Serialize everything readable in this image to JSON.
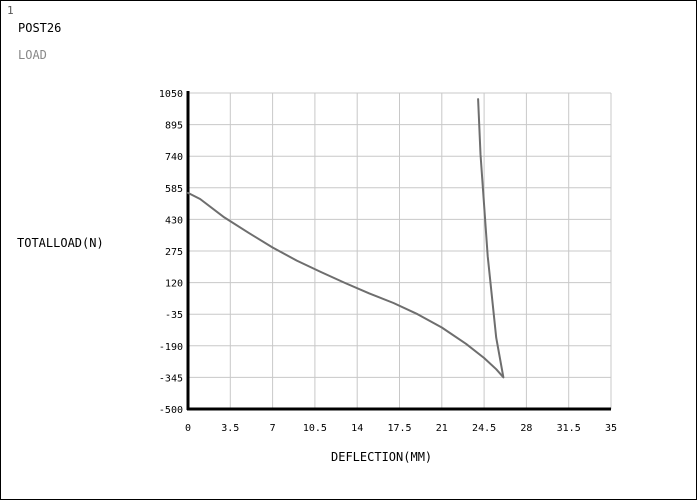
{
  "window_number": "1",
  "program_label": "POST26",
  "subtitle": "LOAD",
  "chart_data": {
    "type": "line",
    "ylabel": "TOTALLOAD(N)",
    "xlabel": "DEFLECTION(MM)",
    "xlim": [
      0,
      35
    ],
    "ylim": [
      -500,
      1050
    ],
    "x_ticks": [
      "0",
      "3.5",
      "7",
      "10.5",
      "14",
      "17.5",
      "21",
      "24.5",
      "28",
      "31.5",
      "35"
    ],
    "y_ticks": [
      "1050",
      "895",
      "740",
      "585",
      "430",
      "275",
      "120",
      "-35",
      "-190",
      "-345",
      "-500"
    ],
    "grid": true,
    "series": [
      {
        "color": "#6e6e6e",
        "x": [
          0,
          1,
          3,
          5,
          7,
          9,
          11,
          13,
          15,
          17,
          19,
          21,
          23,
          24.5,
          25.5,
          26.1,
          25.5,
          24.8,
          24.2,
          24
        ],
        "y": [
          560,
          530,
          440,
          365,
          292,
          228,
          172,
          118,
          67,
          20,
          -35,
          -100,
          -180,
          -250,
          -305,
          -345,
          -150,
          250,
          750,
          1020
        ]
      }
    ]
  }
}
